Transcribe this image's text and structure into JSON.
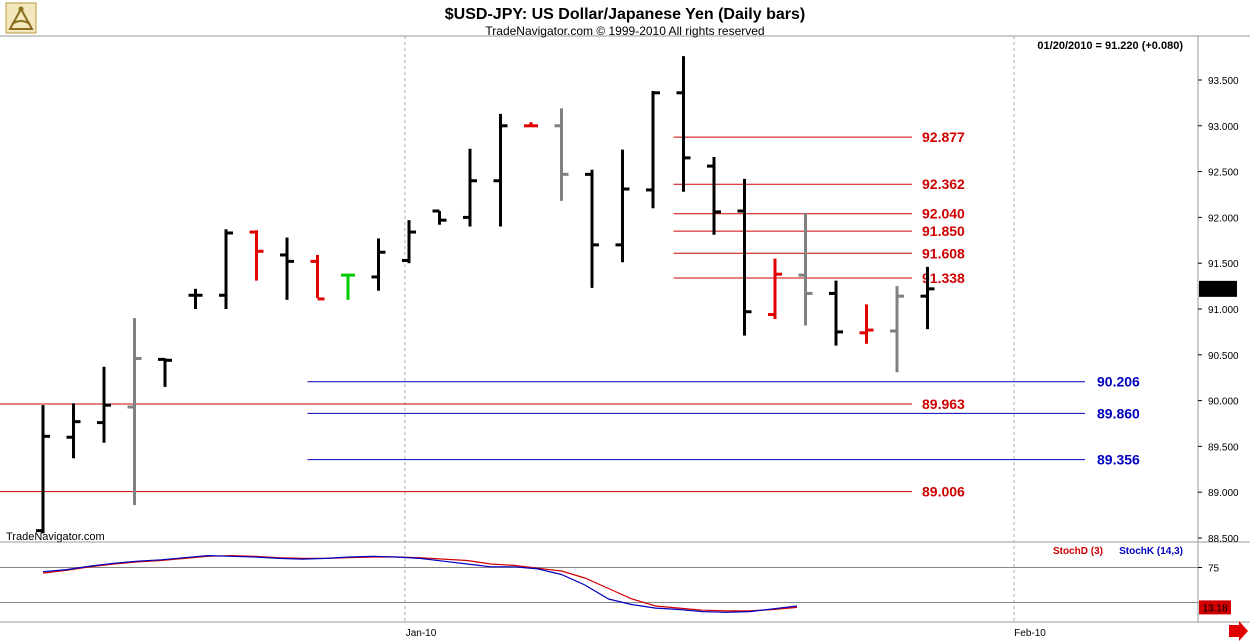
{
  "header": {
    "title": "$USD-JPY:  US Dollar/Japanese Yen  (Daily bars)",
    "subtitle": "TradeNavigator.com © 1999-2010 All rights reserved",
    "quote": "01/20/2010 = 91.220 (+0.080)",
    "watermark": "TradeNavigator.com",
    "logo_icon": "sextant-icon"
  },
  "colors": {
    "bar_up": "#000000",
    "bar_gray": "#808080",
    "bar_red": "#e00000",
    "bar_green": "#00cc00",
    "resistance": "#d00000",
    "support": "#0000c0",
    "stoch_d": "#d00000",
    "stoch_k": "#0000c0",
    "last_price_bg": "#000000"
  },
  "chart_data": [
    {
      "type": "bar",
      "subtype": "ohlc",
      "title": "$USD-JPY:  US Dollar/Japanese Yen  (Daily bars)",
      "ylim": [
        88.5,
        93.8
      ],
      "yticks": [
        "93.500",
        "93.000",
        "92.500",
        "92.000",
        "91.500",
        "91.000",
        "90.500",
        "90.000",
        "89.500",
        "89.000",
        "88.500"
      ],
      "ytick_values": [
        93.5,
        93.0,
        92.5,
        92.0,
        91.5,
        91.0,
        90.5,
        90.0,
        89.5,
        89.0,
        88.5
      ],
      "xtick_labels": [
        "Jan-10",
        "Feb-10"
      ],
      "last_price": "91.220",
      "bars": [
        {
          "o": 88.58,
          "h": 89.95,
          "l": 88.55,
          "c": 89.61,
          "color": "black"
        },
        {
          "o": 89.6,
          "h": 89.97,
          "l": 89.37,
          "c": 89.77,
          "color": "black"
        },
        {
          "o": 89.76,
          "h": 90.37,
          "l": 89.54,
          "c": 89.95,
          "color": "black"
        },
        {
          "o": 89.93,
          "h": 90.9,
          "l": 88.86,
          "c": 90.46,
          "color": "gray"
        },
        {
          "o": 90.45,
          "h": 90.46,
          "l": 90.15,
          "c": 90.44,
          "color": "black"
        },
        {
          "o": 91.15,
          "h": 91.22,
          "l": 91.0,
          "c": 91.15,
          "color": "black"
        },
        {
          "o": 91.15,
          "h": 91.87,
          "l": 91.0,
          "c": 91.83,
          "color": "black"
        },
        {
          "o": 91.84,
          "h": 91.86,
          "l": 91.31,
          "c": 91.63,
          "color": "red"
        },
        {
          "o": 91.59,
          "h": 91.78,
          "l": 91.1,
          "c": 91.52,
          "color": "black"
        },
        {
          "o": 91.52,
          "h": 91.59,
          "l": 91.12,
          "c": 91.11,
          "color": "red"
        },
        {
          "o": 91.37,
          "h": 91.37,
          "l": 91.1,
          "c": 91.37,
          "color": "green"
        },
        {
          "o": 91.35,
          "h": 91.77,
          "l": 91.2,
          "c": 91.62,
          "color": "black"
        },
        {
          "o": 91.53,
          "h": 91.97,
          "l": 91.5,
          "c": 91.84,
          "color": "black"
        },
        {
          "o": 92.07,
          "h": 92.07,
          "l": 91.92,
          "c": 91.97,
          "color": "black"
        },
        {
          "o": 92.0,
          "h": 92.75,
          "l": 91.9,
          "c": 92.4,
          "color": "black"
        },
        {
          "o": 92.4,
          "h": 93.13,
          "l": 91.9,
          "c": 93.0,
          "color": "black"
        },
        {
          "o": 93.0,
          "h": 93.04,
          "l": 92.99,
          "c": 93.0,
          "color": "red"
        },
        {
          "o": 93.0,
          "h": 93.19,
          "l": 92.18,
          "c": 92.47,
          "color": "gray"
        },
        {
          "o": 92.47,
          "h": 92.52,
          "l": 91.23,
          "c": 91.7,
          "color": "black"
        },
        {
          "o": 91.7,
          "h": 92.74,
          "l": 91.51,
          "c": 92.31,
          "color": "black"
        },
        {
          "o": 92.3,
          "h": 93.38,
          "l": 92.1,
          "c": 93.36,
          "color": "black"
        },
        {
          "o": 93.36,
          "h": 93.76,
          "l": 92.28,
          "c": 92.65,
          "color": "black"
        },
        {
          "o": 92.56,
          "h": 92.66,
          "l": 91.81,
          "c": 92.06,
          "color": "black"
        },
        {
          "o": 92.07,
          "h": 92.42,
          "l": 90.71,
          "c": 90.97,
          "color": "black"
        },
        {
          "o": 90.94,
          "h": 91.55,
          "l": 90.89,
          "c": 91.38,
          "color": "red"
        },
        {
          "o": 91.37,
          "h": 92.05,
          "l": 90.82,
          "c": 91.17,
          "color": "gray"
        },
        {
          "o": 91.17,
          "h": 91.31,
          "l": 90.6,
          "c": 90.75,
          "color": "black"
        },
        {
          "o": 90.74,
          "h": 91.05,
          "l": 90.62,
          "c": 90.77,
          "color": "red"
        },
        {
          "o": 90.76,
          "h": 91.25,
          "l": 90.31,
          "c": 91.14,
          "color": "gray"
        },
        {
          "o": 91.14,
          "h": 91.46,
          "l": 90.78,
          "c": 91.22,
          "color": "black"
        }
      ],
      "levels": [
        {
          "value": 92.877,
          "label": "92.877",
          "kind": "resistance",
          "from_bar": 21
        },
        {
          "value": 92.362,
          "label": "92.362",
          "kind": "resistance",
          "from_bar": 21
        },
        {
          "value": 92.04,
          "label": "92.040",
          "kind": "resistance",
          "from_bar": 21
        },
        {
          "value": 91.85,
          "label": "91.850",
          "kind": "resistance",
          "from_bar": 21
        },
        {
          "value": 91.608,
          "label": "91.608",
          "kind": "resistance",
          "from_bar": 21
        },
        {
          "value": 91.338,
          "label": "91.338",
          "kind": "resistance",
          "from_bar": 21
        },
        {
          "value": 89.963,
          "label": "89.963",
          "kind": "resistance",
          "from_bar": -1
        },
        {
          "value": 89.006,
          "label": "89.006",
          "kind": "resistance",
          "from_bar": -1
        },
        {
          "value": 90.206,
          "label": "90.206",
          "kind": "support",
          "from_bar": 9
        },
        {
          "value": 89.86,
          "label": "89.860",
          "kind": "support",
          "from_bar": 9
        },
        {
          "value": 89.356,
          "label": "89.356",
          "kind": "support",
          "from_bar": 9
        }
      ]
    },
    {
      "type": "line",
      "ylim": [
        0,
        100
      ],
      "yticks": [
        "75"
      ],
      "ytick_values": [
        75
      ],
      "reference_lines": [
        75,
        25
      ],
      "last_value": "13.18",
      "series": [
        {
          "name": "StochD (3)",
          "values": [
            67,
            71,
            76,
            80,
            83,
            85,
            88,
            91,
            92,
            91,
            89,
            88,
            88,
            89,
            90,
            90,
            89,
            87,
            85,
            80,
            78,
            74,
            70,
            60,
            45,
            30,
            20,
            17,
            14,
            13,
            13,
            15,
            18
          ]
        },
        {
          "name": "StochK (14,3)",
          "values": [
            69,
            72,
            77,
            81,
            84,
            86,
            89,
            92,
            91,
            90,
            88,
            87,
            88,
            90,
            91,
            90,
            88,
            84,
            80,
            76,
            76,
            73,
            65,
            50,
            30,
            22,
            17,
            15,
            12,
            11,
            12,
            16,
            20
          ]
        }
      ]
    }
  ]
}
